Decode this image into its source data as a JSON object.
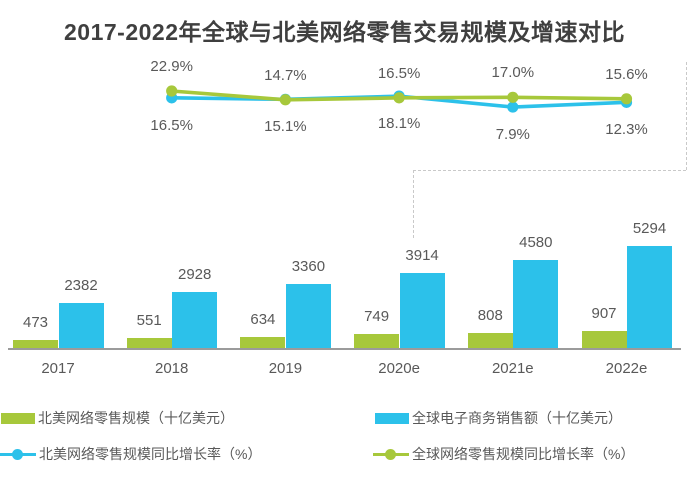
{
  "title": "2017-2022年全球与北美网络零售交易规模及增速对比",
  "chart_data": {
    "type": "bar+line combo",
    "categories": [
      "2017",
      "2018",
      "2019",
      "2020e",
      "2021e",
      "2022e"
    ],
    "bar_series": [
      {
        "name": "北美网络零售规模（十亿美元）",
        "color": "#a7c83b",
        "values": [
          473,
          551,
          634,
          749,
          808,
          907
        ]
      },
      {
        "name": "全球电子商务销售额（十亿美元）",
        "color": "#2cc1ea",
        "values": [
          2382,
          2928,
          3360,
          3914,
          4580,
          5294
        ]
      }
    ],
    "line_series": [
      {
        "name": "北美网络零售规模同比增长率（%）",
        "color": "#2cc1ea",
        "categories": [
          "2018",
          "2019",
          "2020e",
          "2021e",
          "2022e"
        ],
        "values": [
          16.5,
          15.1,
          18.1,
          7.9,
          12.3
        ],
        "labels_position": "below"
      },
      {
        "name": "全球网络零售规模同比增长率（%）",
        "color": "#a7c83b",
        "categories": [
          "2018",
          "2019",
          "2020e",
          "2021e",
          "2022e"
        ],
        "values": [
          22.9,
          14.7,
          16.5,
          17.0,
          15.6
        ],
        "labels_position": "above"
      }
    ],
    "value_label_suffix_line": "%",
    "grid": false,
    "baseline_axis": true,
    "legend_position": "bottom"
  },
  "legend": {
    "items": [
      {
        "label": "北美网络零售规模（十亿美元）",
        "marker": "square",
        "color": "#a7c83b"
      },
      {
        "label": "全球电子商务销售额（十亿美元）",
        "marker": "square",
        "color": "#2cc1ea"
      },
      {
        "label": "北美网络零售规模同比增长率（%）",
        "marker": "line-dot",
        "color": "#2cc1ea"
      },
      {
        "label": "全球网络零售规模同比增长率（%）",
        "marker": "line-dot",
        "color": "#a7c83b"
      }
    ]
  }
}
